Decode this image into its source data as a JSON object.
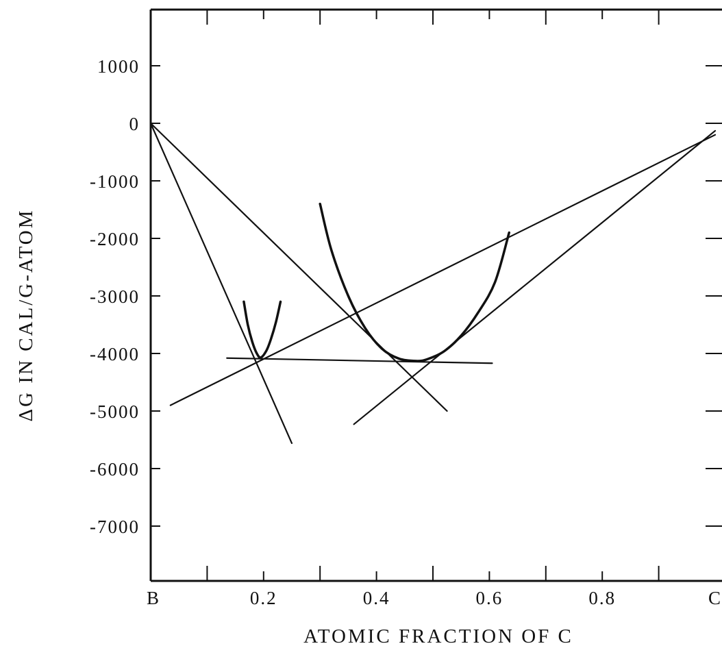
{
  "chart_data": {
    "type": "line",
    "title": "",
    "xlabel": "ATOMIC FRACTION OF C",
    "ylabel": "ΔG IN CAL/G-ATOM",
    "xlim": [
      0,
      1
    ],
    "ylim": [
      -8000,
      2000
    ],
    "grid": false,
    "legend": "none",
    "x_ticks": [
      {
        "value": 0,
        "label": "B"
      },
      {
        "value": 0.2,
        "label": "0.2"
      },
      {
        "value": 0.4,
        "label": "0.4"
      },
      {
        "value": 0.6,
        "label": "0.6"
      },
      {
        "value": 0.8,
        "label": "0.8"
      },
      {
        "value": 1.0,
        "label": "C"
      }
    ],
    "x_minor_ticks": [
      0.1,
      0.3,
      0.5,
      0.7,
      0.9
    ],
    "y_ticks": [
      {
        "value": 1000,
        "label": "1000"
      },
      {
        "value": 0,
        "label": "0"
      },
      {
        "value": -1000,
        "label": "-1000"
      },
      {
        "value": -2000,
        "label": "-2000"
      },
      {
        "value": -3000,
        "label": "-3000"
      },
      {
        "value": -4000,
        "label": "-4000"
      },
      {
        "value": -5000,
        "label": "-5000"
      },
      {
        "value": -6000,
        "label": "-6000"
      },
      {
        "value": -7000,
        "label": "-7000"
      }
    ],
    "series": [
      {
        "kind": "line",
        "points": [
          [
            0.0,
            0
          ],
          [
            0.25,
            -5560
          ]
        ]
      },
      {
        "kind": "line",
        "points": [
          [
            0.0,
            0
          ],
          [
            0.525,
            -5000
          ]
        ]
      },
      {
        "kind": "line",
        "points": [
          [
            0.035,
            -4900
          ],
          [
            1.0,
            -200
          ]
        ]
      },
      {
        "kind": "line",
        "points": [
          [
            0.36,
            -5230
          ],
          [
            1.0,
            -130
          ]
        ]
      },
      {
        "kind": "line",
        "points": [
          [
            0.135,
            -4080
          ],
          [
            0.605,
            -4170
          ]
        ]
      },
      {
        "kind": "curve",
        "points": [
          [
            0.165,
            -3100
          ],
          [
            0.172,
            -3500
          ],
          [
            0.18,
            -3800
          ],
          [
            0.188,
            -4000
          ],
          [
            0.195,
            -4070
          ],
          [
            0.205,
            -3950
          ],
          [
            0.213,
            -3750
          ],
          [
            0.222,
            -3450
          ],
          [
            0.23,
            -3100
          ]
        ]
      },
      {
        "kind": "curve",
        "points": [
          [
            0.3,
            -1400
          ],
          [
            0.32,
            -2200
          ],
          [
            0.35,
            -3000
          ],
          [
            0.38,
            -3560
          ],
          [
            0.41,
            -3920
          ],
          [
            0.44,
            -4090
          ],
          [
            0.47,
            -4130
          ],
          [
            0.49,
            -4100
          ],
          [
            0.52,
            -3960
          ],
          [
            0.55,
            -3690
          ],
          [
            0.58,
            -3290
          ],
          [
            0.61,
            -2760
          ],
          [
            0.635,
            -1900
          ]
        ]
      }
    ]
  }
}
